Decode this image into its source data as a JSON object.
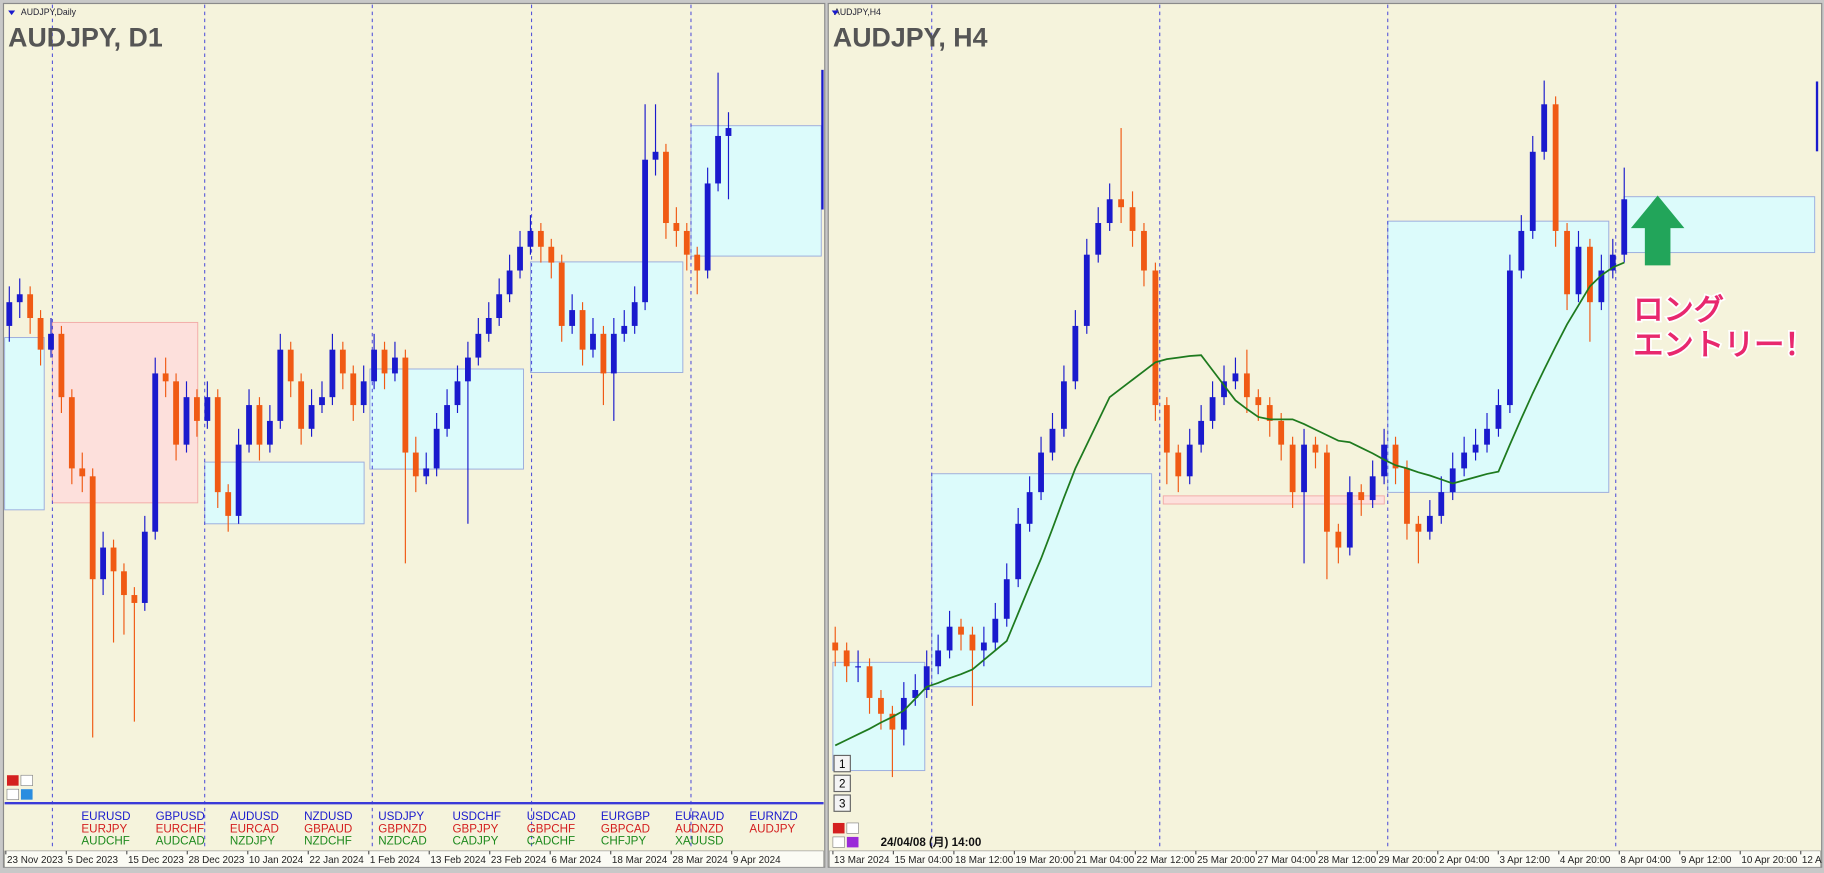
{
  "panels": [
    {
      "label": "AUDJPY,Daily",
      "title": "AUDJPY, D1",
      "scale": [
        0,
        100
      ],
      "up_color": "#1a1acd",
      "down_color": "#f05a14",
      "candles": [
        [
          60,
          65,
          58,
          63
        ],
        [
          63,
          66,
          61,
          64
        ],
        [
          64,
          65,
          59,
          61
        ],
        [
          61,
          62,
          55,
          57
        ],
        [
          57,
          61,
          56,
          59
        ],
        [
          59,
          60,
          49,
          51
        ],
        [
          51,
          52,
          40,
          42
        ],
        [
          42,
          44,
          39,
          41
        ],
        [
          41,
          42,
          8,
          28
        ],
        [
          28,
          34,
          26,
          32
        ],
        [
          32,
          33,
          20,
          29
        ],
        [
          29,
          30,
          21,
          26
        ],
        [
          26,
          27,
          10,
          25
        ],
        [
          25,
          36,
          24,
          34
        ],
        [
          34,
          56,
          33,
          54
        ],
        [
          54,
          56,
          51,
          53
        ],
        [
          53,
          54,
          43,
          45
        ],
        [
          45,
          53,
          44,
          51
        ],
        [
          51,
          52,
          46,
          48
        ],
        [
          48,
          53,
          47,
          51
        ],
        [
          51,
          52,
          37,
          39
        ],
        [
          39,
          40,
          34,
          36
        ],
        [
          36,
          47,
          35,
          45
        ],
        [
          45,
          52,
          44,
          50
        ],
        [
          50,
          51,
          43,
          45
        ],
        [
          45,
          50,
          44,
          48
        ],
        [
          48,
          59,
          47,
          57
        ],
        [
          57,
          58,
          51,
          53
        ],
        [
          53,
          54,
          45,
          47
        ],
        [
          47,
          52,
          46,
          50
        ],
        [
          50,
          53,
          49,
          51
        ],
        [
          51,
          59,
          50,
          57
        ],
        [
          57,
          58,
          52,
          54
        ],
        [
          54,
          55,
          48,
          50
        ],
        [
          50,
          55,
          49,
          53
        ],
        [
          53,
          59,
          52,
          57
        ],
        [
          57,
          58,
          52,
          54
        ],
        [
          54,
          58,
          53,
          56
        ],
        [
          56,
          57,
          30,
          44
        ],
        [
          44,
          46,
          39,
          41
        ],
        [
          41,
          44,
          40,
          42
        ],
        [
          42,
          49,
          41,
          47
        ],
        [
          47,
          52,
          46,
          50
        ],
        [
          50,
          55,
          49,
          53
        ],
        [
          53,
          58,
          35,
          56
        ],
        [
          56,
          61,
          55,
          59
        ],
        [
          59,
          63,
          58,
          61
        ],
        [
          61,
          66,
          60,
          64
        ],
        [
          64,
          69,
          63,
          67
        ],
        [
          67,
          72,
          66,
          70
        ],
        [
          70,
          74,
          69,
          72
        ],
        [
          72,
          73,
          68,
          70
        ],
        [
          70,
          71,
          66,
          68
        ],
        [
          68,
          69,
          58,
          60
        ],
        [
          60,
          64,
          59,
          62
        ],
        [
          62,
          63,
          55,
          57
        ],
        [
          57,
          61,
          56,
          59
        ],
        [
          59,
          60,
          50,
          54
        ],
        [
          54,
          61,
          48,
          59
        ],
        [
          59,
          62,
          58,
          60
        ],
        [
          60,
          65,
          59,
          63
        ],
        [
          63,
          88,
          62,
          81
        ],
        [
          81,
          88,
          79,
          82
        ],
        [
          82,
          83,
          71,
          73
        ],
        [
          73,
          75,
          70,
          72
        ],
        [
          72,
          73,
          67,
          69
        ],
        [
          69,
          70,
          64,
          67
        ],
        [
          67,
          80,
          66,
          78
        ],
        [
          78,
          92,
          77,
          84
        ],
        [
          84,
          87,
          76,
          85
        ]
      ],
      "date_labels": [
        "23 Nov 2023",
        "5 Dec 2023",
        "15 Dec 2023",
        "28 Dec 2023",
        "10 Jan 2024",
        "22 Jan 2024",
        "1 Feb 2024",
        "13 Feb 2024",
        "23 Feb 2024",
        "6 Mar 2024",
        "18 Mar 2024",
        "28 Mar 2024",
        "9 Apr 2024"
      ]
    },
    {
      "label": "AUDJPY,H4",
      "title": "AUDJPY, H4",
      "scale": [
        0,
        100
      ],
      "up_color": "#1a1acd",
      "down_color": "#f05a14",
      "ma_color": "#1e7a1e",
      "candles": [
        [
          20,
          22,
          17,
          19
        ],
        [
          19,
          20,
          15,
          17
        ],
        [
          17,
          19,
          15,
          17
        ],
        [
          17,
          18,
          11,
          13
        ],
        [
          13,
          14,
          9,
          11
        ],
        [
          11,
          12,
          3,
          9
        ],
        [
          9,
          15,
          7,
          13
        ],
        [
          13,
          16,
          12,
          14
        ],
        [
          14,
          19,
          13,
          17
        ],
        [
          17,
          21,
          16,
          19
        ],
        [
          19,
          24,
          18,
          22
        ],
        [
          22,
          23,
          19,
          21
        ],
        [
          21,
          22,
          12,
          19
        ],
        [
          19,
          22,
          17,
          20
        ],
        [
          20,
          25,
          19,
          23
        ],
        [
          23,
          30,
          22,
          28
        ],
        [
          28,
          37,
          27,
          35
        ],
        [
          35,
          41,
          34,
          39
        ],
        [
          39,
          46,
          38,
          44
        ],
        [
          44,
          49,
          43,
          47
        ],
        [
          47,
          55,
          46,
          53
        ],
        [
          53,
          62,
          52,
          60
        ],
        [
          60,
          71,
          59,
          69
        ],
        [
          69,
          75,
          68,
          73
        ],
        [
          73,
          78,
          72,
          76
        ],
        [
          76,
          85,
          73,
          75
        ],
        [
          75,
          77,
          70,
          72
        ],
        [
          72,
          73,
          65,
          67
        ],
        [
          67,
          68,
          48,
          50
        ],
        [
          50,
          51,
          40,
          44
        ],
        [
          44,
          45,
          39,
          41
        ],
        [
          41,
          47,
          40,
          45
        ],
        [
          45,
          50,
          44,
          48
        ],
        [
          48,
          53,
          47,
          51
        ],
        [
          51,
          55,
          50,
          53
        ],
        [
          53,
          56,
          52,
          54
        ],
        [
          54,
          57,
          49,
          51
        ],
        [
          51,
          52,
          48,
          50
        ],
        [
          50,
          51,
          46,
          48
        ],
        [
          48,
          49,
          43,
          45
        ],
        [
          45,
          46,
          37,
          39
        ],
        [
          39,
          47,
          30,
          45
        ],
        [
          45,
          46,
          42,
          44
        ],
        [
          44,
          45,
          28,
          34
        ],
        [
          34,
          35,
          30,
          32
        ],
        [
          32,
          41,
          31,
          39
        ],
        [
          39,
          40,
          36,
          38
        ],
        [
          38,
          43,
          37,
          41
        ],
        [
          41,
          47,
          40,
          45
        ],
        [
          45,
          46,
          40,
          42
        ],
        [
          42,
          43,
          33,
          35
        ],
        [
          35,
          36,
          30,
          34
        ],
        [
          34,
          38,
          33,
          36
        ],
        [
          36,
          41,
          35,
          39
        ],
        [
          39,
          44,
          38,
          42
        ],
        [
          42,
          46,
          41,
          44
        ],
        [
          44,
          47,
          43,
          45
        ],
        [
          45,
          49,
          44,
          47
        ],
        [
          47,
          52,
          46,
          50
        ],
        [
          50,
          69,
          49,
          67
        ],
        [
          67,
          74,
          66,
          72
        ],
        [
          72,
          84,
          71,
          82
        ],
        [
          82,
          91,
          81,
          88
        ],
        [
          88,
          89,
          70,
          72
        ],
        [
          72,
          73,
          62,
          64
        ],
        [
          64,
          72,
          63,
          70
        ],
        [
          70,
          71,
          58,
          63
        ],
        [
          63,
          69,
          62,
          67
        ],
        [
          67,
          71,
          66,
          69
        ],
        [
          69,
          80,
          68,
          76
        ]
      ],
      "ma": [
        7,
        7.7,
        8.4,
        9.1,
        9.9,
        10.6,
        11.4,
        12.9,
        14.4,
        14.9,
        15.5,
        16,
        16.6,
        17.8,
        19,
        20.2,
        23.7,
        27.2,
        30.6,
        34.4,
        38.3,
        42,
        45,
        48,
        51,
        52.1,
        53.2,
        54.3,
        55.4,
        55.8,
        56,
        56.2,
        56.3,
        54.4,
        52.5,
        50.6,
        49.5,
        48.5,
        48.2,
        48.2,
        48.2,
        47.6,
        46.9,
        46.2,
        45.5,
        45.3,
        44.6,
        43.9,
        43.1,
        42.4,
        42,
        41.5,
        41.1,
        40.6,
        40.1,
        40.5,
        40.9,
        41.3,
        41.6,
        45,
        48.3,
        51.5,
        54.5,
        57.4,
        60.2,
        62.6,
        65,
        66.4,
        67.4,
        68
      ],
      "date_labels": [
        "13 Mar 2024",
        "15 Mar 04:00",
        "18 Mar 12:00",
        "19 Mar 20:00",
        "21 Mar 04:00",
        "22 Mar 12:00",
        "25 Mar 20:00",
        "27 Mar 04:00",
        "28 Mar 12:00",
        "29 Mar 20:00",
        "2 Apr 04:00",
        "3 Apr 12:00",
        "4 Apr 20:00",
        "8 Apr 04:00",
        "9 Apr 12:00",
        "10 Apr 20:00",
        "12 A"
      ],
      "annotation": [
        "ロング",
        "エントリー！"
      ],
      "crosshair_time": "24/04/08 (月) 14:00",
      "buttons": [
        "1",
        "2",
        "3"
      ]
    }
  ],
  "symbols": [
    [
      "EURUSD",
      "EURJPY",
      "AUDCHF"
    ],
    [
      "GBPUSD",
      "EURCHF",
      "AUDCAD"
    ],
    [
      "AUDUSD",
      "EURCAD",
      "NZDJPY"
    ],
    [
      "NZDUSD",
      "GBPAUD",
      "NZDCHF"
    ],
    [
      "USDJPY",
      "GBPNZD",
      "NZDCAD"
    ],
    [
      "USDCHF",
      "GBPJPY",
      "CADJPY"
    ],
    [
      "USDCAD",
      "GBPCHF",
      "CADCHF"
    ],
    [
      "EURGBP",
      "GBPCAD",
      "CHFJPY"
    ],
    [
      "EURAUD",
      "AUDNZD",
      "XAUUSD"
    ],
    [
      "EURNZD",
      "AUDJPY"
    ]
  ],
  "symbol_colors": [
    "#1a1acd",
    "#d42020",
    "#1e8a1e"
  ]
}
